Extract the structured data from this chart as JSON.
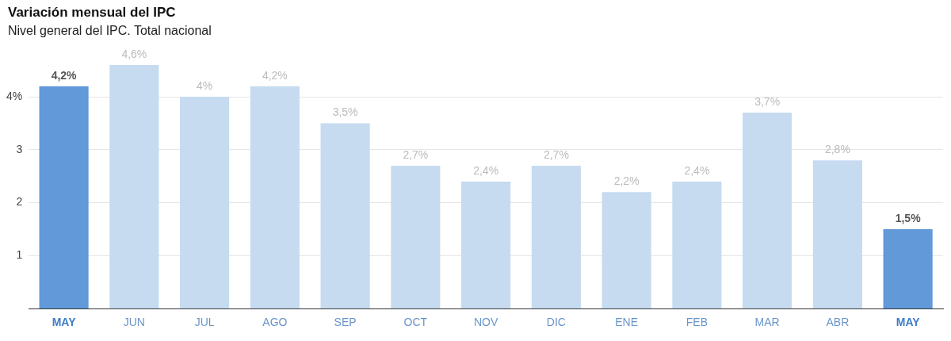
{
  "chart_data": {
    "type": "bar",
    "title": "Variación mensual del IPC",
    "subtitle": "Nivel general del IPC. Total nacional",
    "categories": [
      "MAY",
      "JUN",
      "JUL",
      "AGO",
      "SEP",
      "OCT",
      "NOV",
      "DIC",
      "ENE",
      "FEB",
      "MAR",
      "ABR",
      "MAY"
    ],
    "values": [
      4.2,
      4.6,
      4,
      4.2,
      3.5,
      2.7,
      2.4,
      2.7,
      2.2,
      2.4,
      3.7,
      2.8,
      1.5
    ],
    "value_labels": [
      "4,2%",
      "4,6%",
      "4%",
      "4,2%",
      "3,5%",
      "2,7%",
      "2,4%",
      "2,7%",
      "2,2%",
      "2,4%",
      "3,7%",
      "2,8%",
      "1,5%"
    ],
    "colors": [
      "#6199d9",
      "#c6dbf0",
      "#c6dbf0",
      "#c6dbf0",
      "#c6dbf0",
      "#c6dbf0",
      "#c6dbf0",
      "#c6dbf0",
      "#c6dbf0",
      "#c6dbf0",
      "#c6dbf0",
      "#c6dbf0",
      "#6199d9"
    ],
    "ylim": [
      0,
      4.6
    ],
    "yticks": [
      {
        "value": 1,
        "label": "1"
      },
      {
        "value": 2,
        "label": "2"
      },
      {
        "value": 3,
        "label": "3"
      },
      {
        "value": 4,
        "label": "4%"
      }
    ],
    "grid": "y",
    "legend": false
  }
}
